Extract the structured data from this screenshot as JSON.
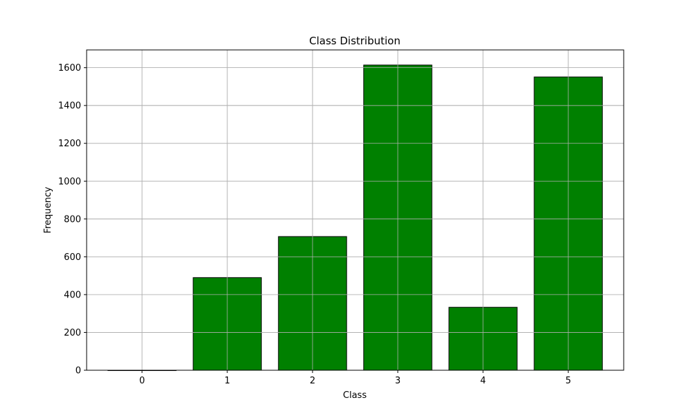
{
  "chart_data": {
    "type": "bar",
    "title": "Class Distribution",
    "xlabel": "Class",
    "ylabel": "Frequency",
    "categories": [
      "0",
      "1",
      "2",
      "3",
      "4",
      "5"
    ],
    "values": [
      0,
      490,
      707,
      1614,
      333,
      1551
    ],
    "y_ticks": [
      0,
      200,
      400,
      600,
      800,
      1000,
      1200,
      1400,
      1600
    ],
    "ylim": [
      0,
      1694
    ],
    "grid": true,
    "bar_color": "#008000",
    "edge_color": "#000000"
  }
}
